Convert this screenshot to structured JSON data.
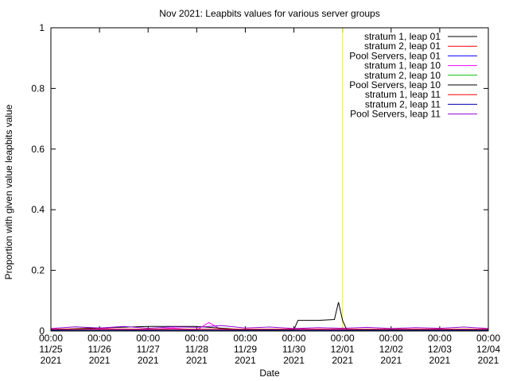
{
  "chart_data": {
    "type": "line",
    "title": "Nov 2021: Leapbits values for various server groups",
    "xlabel": "Date",
    "ylabel": "Proportion with given value leapbits value",
    "ylim": [
      0,
      1
    ],
    "y_ticks": [
      0,
      0.2,
      0.4,
      0.6,
      0.8,
      1
    ],
    "y_tick_labels": [
      "0",
      "0.2",
      "0.4",
      "0.6",
      "0.8",
      "1"
    ],
    "xlim": [
      "2021-11-25 00:00",
      "2021-12-04 00:00"
    ],
    "x_tick_labels": [
      {
        "time": "00:00",
        "date": "11/25",
        "year": "2021"
      },
      {
        "time": "00:00",
        "date": "11/26",
        "year": "2021"
      },
      {
        "time": "00:00",
        "date": "11/27",
        "year": "2021"
      },
      {
        "time": "00:00",
        "date": "11/28",
        "year": "2021"
      },
      {
        "time": "00:00",
        "date": "11/29",
        "year": "2021"
      },
      {
        "time": "00:00",
        "date": "11/30",
        "year": "2021"
      },
      {
        "time": "00:00",
        "date": "12/01",
        "year": "2021"
      },
      {
        "time": "00:00",
        "date": "12/02",
        "year": "2021"
      },
      {
        "time": "00:00",
        "date": "12/03",
        "year": "2021"
      },
      {
        "time": "00:00",
        "date": "12/04",
        "year": "2021"
      }
    ],
    "x_tick_dates": [
      "2021-11-25 00:00",
      "2021-11-26 00:00",
      "2021-11-27 00:00",
      "2021-11-28 00:00",
      "2021-11-29 00:00",
      "2021-11-30 00:00",
      "2021-12-01 00:00",
      "2021-12-02 00:00",
      "2021-12-03 00:00",
      "2021-12-04 00:00"
    ],
    "grid": false,
    "legend_position": "top-right",
    "vertical_marker": {
      "x": "2021-12-01 00:00",
      "color": "#ffff00"
    },
    "series": [
      {
        "name": "stratum 1, leap 01",
        "color": "#000000",
        "x": [
          "2021-11-25 00:00",
          "2021-12-04 00:00"
        ],
        "y": [
          0,
          0
        ]
      },
      {
        "name": "stratum 2, leap 01",
        "color": "#ff0000",
        "x": [
          "2021-11-25 00:00",
          "2021-12-04 00:00"
        ],
        "y": [
          0,
          0
        ]
      },
      {
        "name": "Pool Servers, leap 01",
        "color": "#0000ff",
        "x": [
          "2021-11-25 00:00",
          "2021-12-04 00:00"
        ],
        "y": [
          0,
          0
        ]
      },
      {
        "name": "stratum 1, leap 10",
        "color": "#ff00ff",
        "x": [
          "2021-11-25 00:00",
          "2021-11-26 00:00",
          "2021-11-27 00:00",
          "2021-11-27 12:00",
          "2021-11-28 00:00",
          "2021-11-28 06:00",
          "2021-11-28 12:00",
          "2021-11-29 00:00",
          "2021-11-30 00:00",
          "2021-12-01 00:00",
          "2021-12-02 00:00",
          "2021-12-03 00:00",
          "2021-12-04 00:00"
        ],
        "y": [
          0.005,
          0.008,
          0.004,
          0.01,
          0.003,
          0.028,
          0.005,
          0.004,
          0.006,
          0.005,
          0.004,
          0.006,
          0.004
        ]
      },
      {
        "name": "stratum 2, leap 10",
        "color": "#00c000",
        "x": [
          "2021-11-25 00:00",
          "2021-12-04 00:00"
        ],
        "y": [
          0.002,
          0.002
        ]
      },
      {
        "name": "Pool Servers, leap 10",
        "color": "#000000",
        "x": [
          "2021-11-25 00:00",
          "2021-11-27 00:00",
          "2021-11-28 00:00",
          "2021-11-29 00:00",
          "2021-11-30 00:00",
          "2021-11-30 02:00",
          "2021-11-30 12:00",
          "2021-11-30 20:00",
          "2021-11-30 22:00",
          "2021-12-01 00:00",
          "2021-12-01 02:00",
          "2021-12-02 00:00",
          "2021-12-03 00:00",
          "2021-12-04 00:00"
        ],
        "y": [
          0.005,
          0.015,
          0.015,
          0.004,
          0.004,
          0.035,
          0.035,
          0.038,
          0.095,
          0.035,
          0.005,
          0.004,
          0.004,
          0.004
        ]
      },
      {
        "name": "stratum 1, leap 11",
        "color": "#ff0000",
        "x": [
          "2021-11-25 00:00",
          "2021-12-04 00:00"
        ],
        "y": [
          0.006,
          0.006
        ]
      },
      {
        "name": "stratum 2, leap 11",
        "color": "#0000aa",
        "x": [
          "2021-11-25 00:00",
          "2021-12-04 00:00"
        ],
        "y": [
          0.003,
          0.003
        ]
      },
      {
        "name": "Pool Servers, leap 11",
        "color": "#9400d3",
        "x": [
          "2021-11-25 00:00",
          "2021-11-25 12:00",
          "2021-11-26 00:00",
          "2021-11-26 12:00",
          "2021-11-27 00:00",
          "2021-11-27 12:00",
          "2021-11-28 00:00",
          "2021-11-28 12:00",
          "2021-11-29 00:00",
          "2021-11-29 12:00",
          "2021-11-30 00:00",
          "2021-11-30 12:00",
          "2021-12-01 00:00",
          "2021-12-01 12:00",
          "2021-12-02 00:00",
          "2021-12-02 12:00",
          "2021-12-03 00:00",
          "2021-12-03 12:00",
          "2021-12-04 00:00"
        ],
        "y": [
          0.008,
          0.014,
          0.01,
          0.015,
          0.009,
          0.014,
          0.012,
          0.018,
          0.01,
          0.013,
          0.008,
          0.011,
          0.009,
          0.012,
          0.008,
          0.011,
          0.009,
          0.013,
          0.008
        ]
      }
    ]
  }
}
